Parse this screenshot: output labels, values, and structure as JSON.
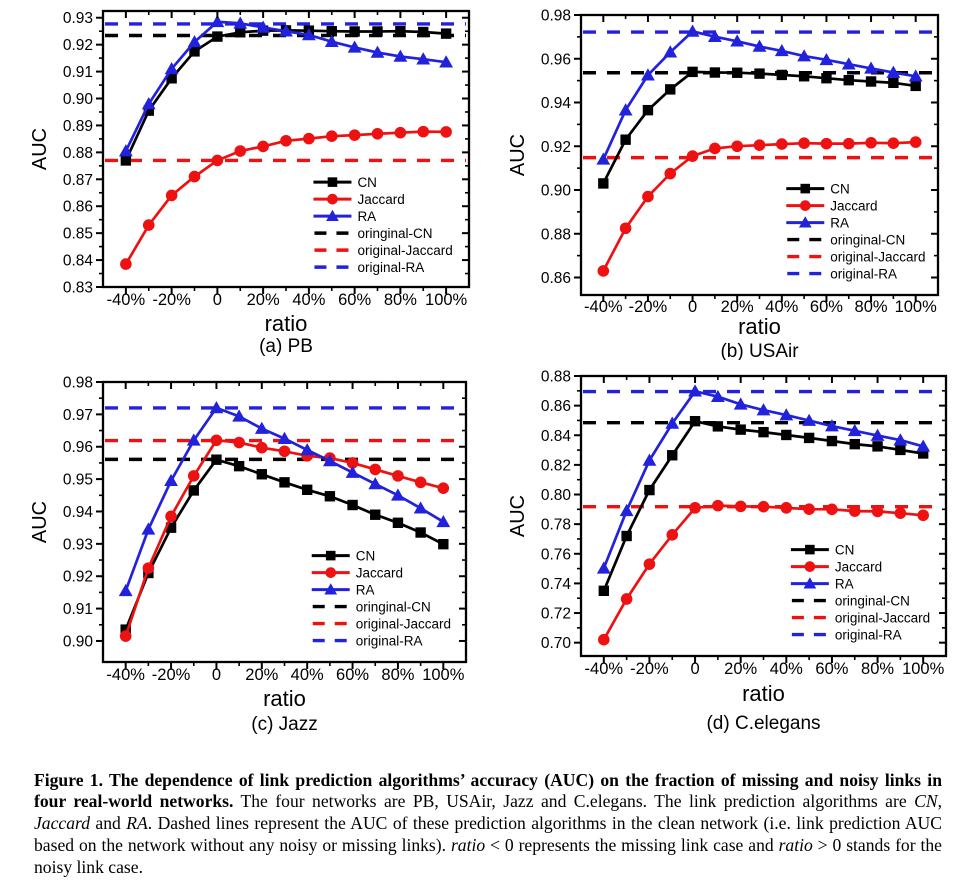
{
  "figure_label": "Figure 1.",
  "chart_data": [
    {
      "type": "line",
      "title": "(a) PB",
      "xlabel": "ratio",
      "ylabel": "AUC",
      "xlim": [
        -50,
        110
      ],
      "ylim": [
        0.83,
        0.9325
      ],
      "x_major_ticks": [
        -40,
        -20,
        0,
        20,
        40,
        60,
        80,
        100
      ],
      "x_tick_labels": [
        "-40%",
        "-20%",
        "0",
        "20%",
        "40%",
        "60%",
        "80%",
        "100%"
      ],
      "x_minor_step": 10,
      "y_tick_labels": [
        "0.83",
        "0.84",
        "0.85",
        "0.86",
        "0.87",
        "0.88",
        "0.89",
        "0.90",
        "0.91",
        "0.92",
        "0.93"
      ],
      "grid": false,
      "legend_position": "inside lower right",
      "x": [
        -40,
        -30,
        -20,
        -10,
        0,
        10,
        20,
        30,
        40,
        50,
        60,
        70,
        80,
        90,
        100
      ],
      "series": [
        {
          "name": "CN",
          "color": "#000000",
          "marker": "square",
          "values": [
            0.877,
            0.8955,
            0.9075,
            0.9175,
            0.923,
            0.9246,
            0.9252,
            0.9253,
            0.9252,
            0.925,
            0.9249,
            0.9249,
            0.925,
            0.9247,
            0.9241
          ]
        },
        {
          "name": "Jaccard",
          "color": "#ee1111",
          "marker": "circle",
          "values": [
            0.8385,
            0.853,
            0.864,
            0.871,
            0.877,
            0.8805,
            0.8822,
            0.8843,
            0.8851,
            0.886,
            0.8864,
            0.8869,
            0.8873,
            0.8877,
            0.8876
          ]
        },
        {
          "name": "RA",
          "color": "#2222dd",
          "marker": "triangle",
          "values": [
            0.8805,
            0.898,
            0.911,
            0.921,
            0.9285,
            0.9279,
            0.9264,
            0.925,
            0.9236,
            0.9211,
            0.919,
            0.9171,
            0.9156,
            0.9146,
            0.9135
          ]
        }
      ],
      "baselines": [
        {
          "name": "oringinal-CN",
          "color": "#000000",
          "value": 0.9234
        },
        {
          "name": "original-Jaccard",
          "color": "#ee1111",
          "value": 0.877
        },
        {
          "name": "original-RA",
          "color": "#2222dd",
          "value": 0.9277
        }
      ]
    },
    {
      "type": "line",
      "title": "(b) USAir",
      "xlabel": "ratio",
      "ylabel": "AUC",
      "xlim": [
        -50,
        110
      ],
      "ylim": [
        0.852,
        0.98
      ],
      "x_major_ticks": [
        -40,
        -20,
        0,
        20,
        40,
        60,
        80,
        100
      ],
      "x_tick_labels": [
        "-40%",
        "-20%",
        "0",
        "20%",
        "40%",
        "60%",
        "80%",
        "100%"
      ],
      "x_minor_step": 10,
      "y_tick_labels": [
        "0.86",
        "0.88",
        "0.90",
        "0.92",
        "0.94",
        "0.96",
        "0.98"
      ],
      "grid": false,
      "legend_position": "inside lower right",
      "x": [
        -40,
        -30,
        -20,
        -10,
        0,
        10,
        20,
        30,
        40,
        50,
        60,
        70,
        80,
        90,
        100
      ],
      "series": [
        {
          "name": "CN",
          "color": "#000000",
          "marker": "square",
          "values": [
            0.903,
            0.923,
            0.9365,
            0.946,
            0.954,
            0.9537,
            0.9536,
            0.9532,
            0.9526,
            0.952,
            0.9511,
            0.9502,
            0.9496,
            0.949,
            0.9476
          ]
        },
        {
          "name": "Jaccard",
          "color": "#ee1111",
          "marker": "circle",
          "values": [
            0.863,
            0.8825,
            0.897,
            0.9075,
            0.9155,
            0.919,
            0.92,
            0.9205,
            0.921,
            0.9214,
            0.9212,
            0.9212,
            0.9216,
            0.9214,
            0.9219
          ]
        },
        {
          "name": "RA",
          "color": "#2222dd",
          "marker": "triangle",
          "values": [
            0.914,
            0.9365,
            0.9525,
            0.963,
            0.9725,
            0.9701,
            0.968,
            0.9656,
            0.9636,
            0.9612,
            0.9595,
            0.9575,
            0.9556,
            0.9537,
            0.952
          ]
        }
      ],
      "baselines": [
        {
          "name": "oringinal-CN",
          "color": "#000000",
          "value": 0.9536
        },
        {
          "name": "original-Jaccard",
          "color": "#ee1111",
          "value": 0.9148
        },
        {
          "name": "original-RA",
          "color": "#2222dd",
          "value": 0.9722
        }
      ]
    },
    {
      "type": "line",
      "title": "(c) Jazz",
      "xlabel": "ratio",
      "ylabel": "AUC",
      "xlim": [
        -50,
        110
      ],
      "ylim": [
        0.8935,
        0.98
      ],
      "x_major_ticks": [
        -40,
        -20,
        0,
        20,
        40,
        60,
        80,
        100
      ],
      "x_tick_labels": [
        "-40%",
        "-20%",
        "0",
        "20%",
        "40%",
        "60%",
        "80%",
        "100%"
      ],
      "x_minor_step": 10,
      "y_tick_labels": [
        "0.90",
        "0.91",
        "0.92",
        "0.93",
        "0.94",
        "0.95",
        "0.96",
        "0.97",
        "0.98"
      ],
      "grid": false,
      "legend_position": "inside lower right",
      "x": [
        -40,
        -30,
        -20,
        -10,
        0,
        10,
        20,
        30,
        40,
        50,
        60,
        70,
        80,
        90,
        100
      ],
      "series": [
        {
          "name": "CN",
          "color": "#000000",
          "marker": "square",
          "values": [
            0.9035,
            0.921,
            0.935,
            0.9465,
            0.956,
            0.954,
            0.9515,
            0.949,
            0.9467,
            0.9447,
            0.942,
            0.939,
            0.9365,
            0.9335,
            0.9299
          ]
        },
        {
          "name": "Jaccard",
          "color": "#ee1111",
          "marker": "circle",
          "values": [
            0.9015,
            0.9225,
            0.9385,
            0.951,
            0.962,
            0.9613,
            0.9597,
            0.9586,
            0.9572,
            0.9565,
            0.955,
            0.953,
            0.951,
            0.949,
            0.9472
          ]
        },
        {
          "name": "RA",
          "color": "#2222dd",
          "marker": "triangle",
          "values": [
            0.9155,
            0.9345,
            0.9495,
            0.962,
            0.972,
            0.9694,
            0.9656,
            0.9625,
            0.959,
            0.9556,
            0.952,
            0.9485,
            0.945,
            0.941,
            0.9368
          ]
        }
      ],
      "baselines": [
        {
          "name": "oringinal-CN",
          "color": "#000000",
          "value": 0.9561
        },
        {
          "name": "original-Jaccard",
          "color": "#ee1111",
          "value": 0.9619
        },
        {
          "name": "original-RA",
          "color": "#2222dd",
          "value": 0.972
        }
      ]
    },
    {
      "type": "line",
      "title": "(d) C.elegans",
      "xlabel": "ratio",
      "ylabel": "AUC",
      "xlim": [
        -50,
        110
      ],
      "ylim": [
        0.691,
        0.88
      ],
      "x_major_ticks": [
        -40,
        -20,
        0,
        20,
        40,
        60,
        80,
        100
      ],
      "x_tick_labels": [
        "-40%",
        "-20%",
        "0",
        "20%",
        "40%",
        "60%",
        "80%",
        "100%"
      ],
      "x_minor_step": 10,
      "y_tick_labels": [
        "0.70",
        "0.72",
        "0.74",
        "0.76",
        "0.78",
        "0.80",
        "0.82",
        "0.84",
        "0.86",
        "0.88"
      ],
      "grid": false,
      "legend_position": "inside lower right",
      "x": [
        -40,
        -30,
        -20,
        -10,
        0,
        10,
        20,
        30,
        40,
        50,
        60,
        70,
        80,
        90,
        100
      ],
      "series": [
        {
          "name": "CN",
          "color": "#000000",
          "marker": "square",
          "values": [
            0.735,
            0.772,
            0.803,
            0.8265,
            0.8495,
            0.846,
            0.8438,
            0.8421,
            0.8402,
            0.8382,
            0.8361,
            0.834,
            0.8325,
            0.8301,
            0.8277
          ]
        },
        {
          "name": "Jaccard",
          "color": "#ee1111",
          "marker": "circle",
          "values": [
            0.702,
            0.7295,
            0.753,
            0.7728,
            0.791,
            0.7925,
            0.792,
            0.7918,
            0.791,
            0.7901,
            0.79,
            0.7888,
            0.7886,
            0.7874,
            0.786
          ]
        },
        {
          "name": "RA",
          "color": "#2222dd",
          "marker": "triangle",
          "values": [
            0.7502,
            0.789,
            0.823,
            0.848,
            0.8697,
            0.866,
            0.8609,
            0.857,
            0.8536,
            0.8499,
            0.8462,
            0.843,
            0.8398,
            0.8367,
            0.8325
          ]
        }
      ],
      "baselines": [
        {
          "name": "oringinal-CN",
          "color": "#000000",
          "value": 0.8485
        },
        {
          "name": "original-Jaccard",
          "color": "#ee1111",
          "value": 0.7918
        },
        {
          "name": "original-RA",
          "color": "#2222dd",
          "value": 0.8695
        }
      ]
    }
  ],
  "caption": {
    "segments": [
      {
        "text": "Figure 1.",
        "bold": true
      },
      {
        "text": "  The dependence of link prediction algorithms’ accuracy (AUC) on the fraction of missing and noisy links in four real-world networks.",
        "bold": true
      },
      {
        "text": " The four networks are PB, USAir, Jazz and C.elegans. The link prediction algorithms are "
      },
      {
        "text": "CN",
        "italic": true
      },
      {
        "text": ", "
      },
      {
        "text": "Jaccard",
        "italic": true
      },
      {
        "text": " and "
      },
      {
        "text": "RA",
        "italic": true
      },
      {
        "text": ". Dashed lines represent the AUC of these prediction algorithms in the clean network (i.e. link prediction AUC based on the network without any noisy or missing links). "
      },
      {
        "text": "ratio",
        "italic": true
      },
      {
        "text": " < 0 represents the missing link case and "
      },
      {
        "text": "ratio",
        "italic": true
      },
      {
        "text": " > 0 stands for the noisy link case."
      }
    ]
  }
}
